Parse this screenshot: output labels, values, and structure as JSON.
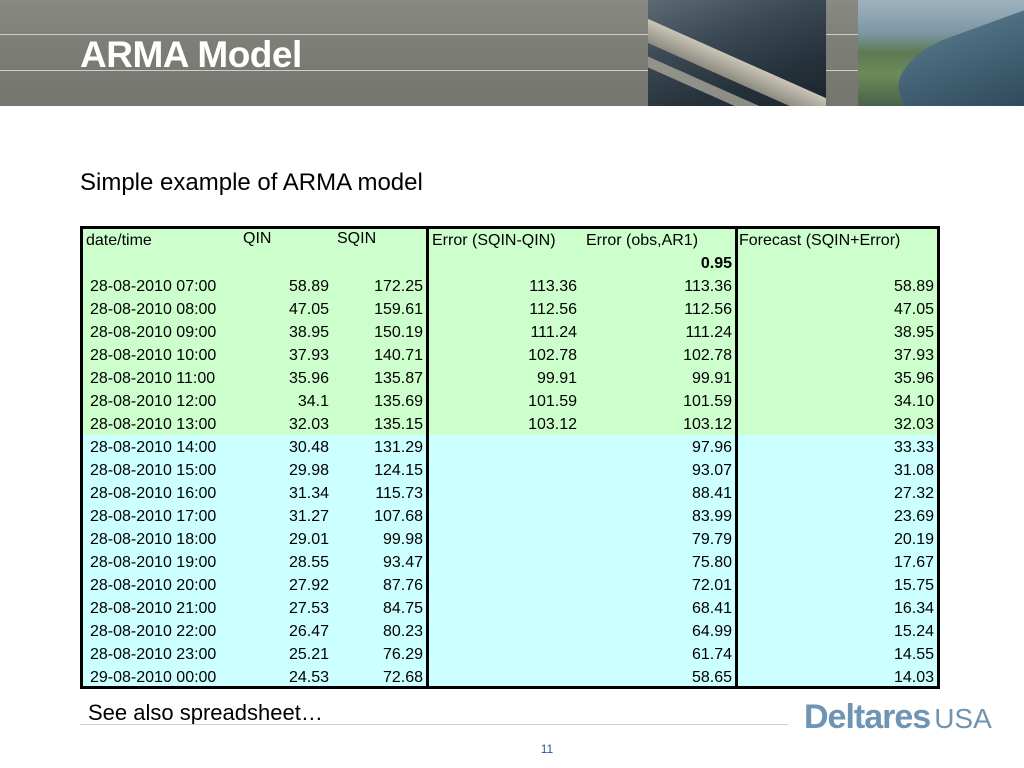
{
  "slide": {
    "title": "ARMA Model",
    "subtitle": "Simple example of ARMA model",
    "note": "See also spreadsheet…",
    "page_number": "11",
    "logo_main": "Deltares",
    "logo_suffix": "USA"
  },
  "colors": {
    "header_gray": "#7d7e78",
    "observed_band": "#ccffcc",
    "forecast_band": "#ccffff",
    "logo_blue": "#6f94b4",
    "page_number_blue": "#2a55a8"
  },
  "table": {
    "headers": {
      "datetime": "date/time",
      "qin": "QIN",
      "sqin": "SQIN",
      "error_sqin_qin": "Error (SQIN-QIN)",
      "error_obs_ar1": "Error (obs,AR1)",
      "forecast": "Forecast (SQIN+Error)"
    },
    "ar1_coefficient": "0.95",
    "rows": [
      {
        "datetime": "28-08-2010 07:00",
        "qin": "58.89",
        "sqin": "172.25",
        "err": "113.36",
        "err_ar1": "113.36",
        "forecast": "58.89"
      },
      {
        "datetime": "28-08-2010 08:00",
        "qin": "47.05",
        "sqin": "159.61",
        "err": "112.56",
        "err_ar1": "112.56",
        "forecast": "47.05"
      },
      {
        "datetime": "28-08-2010 09:00",
        "qin": "38.95",
        "sqin": "150.19",
        "err": "111.24",
        "err_ar1": "111.24",
        "forecast": "38.95"
      },
      {
        "datetime": "28-08-2010 10:00",
        "qin": "37.93",
        "sqin": "140.71",
        "err": "102.78",
        "err_ar1": "102.78",
        "forecast": "37.93"
      },
      {
        "datetime": "28-08-2010 11:00",
        "qin": "35.96",
        "sqin": "135.87",
        "err": "99.91",
        "err_ar1": "99.91",
        "forecast": "35.96"
      },
      {
        "datetime": "28-08-2010 12:00",
        "qin": "34.1",
        "sqin": "135.69",
        "err": "101.59",
        "err_ar1": "101.59",
        "forecast": "34.10"
      },
      {
        "datetime": "28-08-2010 13:00",
        "qin": "32.03",
        "sqin": "135.15",
        "err": "103.12",
        "err_ar1": "103.12",
        "forecast": "32.03"
      },
      {
        "datetime": "28-08-2010 14:00",
        "qin": "30.48",
        "sqin": "131.29",
        "err": "",
        "err_ar1": "97.96",
        "forecast": "33.33"
      },
      {
        "datetime": "28-08-2010 15:00",
        "qin": "29.98",
        "sqin": "124.15",
        "err": "",
        "err_ar1": "93.07",
        "forecast": "31.08"
      },
      {
        "datetime": "28-08-2010 16:00",
        "qin": "31.34",
        "sqin": "115.73",
        "err": "",
        "err_ar1": "88.41",
        "forecast": "27.32"
      },
      {
        "datetime": "28-08-2010 17:00",
        "qin": "31.27",
        "sqin": "107.68",
        "err": "",
        "err_ar1": "83.99",
        "forecast": "23.69"
      },
      {
        "datetime": "28-08-2010 18:00",
        "qin": "29.01",
        "sqin": "99.98",
        "err": "",
        "err_ar1": "79.79",
        "forecast": "20.19"
      },
      {
        "datetime": "28-08-2010 19:00",
        "qin": "28.55",
        "sqin": "93.47",
        "err": "",
        "err_ar1": "75.80",
        "forecast": "17.67"
      },
      {
        "datetime": "28-08-2010 20:00",
        "qin": "27.92",
        "sqin": "87.76",
        "err": "",
        "err_ar1": "72.01",
        "forecast": "15.75"
      },
      {
        "datetime": "28-08-2010 21:00",
        "qin": "27.53",
        "sqin": "84.75",
        "err": "",
        "err_ar1": "68.41",
        "forecast": "16.34"
      },
      {
        "datetime": "28-08-2010 22:00",
        "qin": "26.47",
        "sqin": "80.23",
        "err": "",
        "err_ar1": "64.99",
        "forecast": "15.24"
      },
      {
        "datetime": "28-08-2010 23:00",
        "qin": "25.21",
        "sqin": "76.29",
        "err": "",
        "err_ar1": "61.74",
        "forecast": "14.55"
      },
      {
        "datetime": "29-08-2010 00:00",
        "qin": "24.53",
        "sqin": "72.68",
        "err": "",
        "err_ar1": "58.65",
        "forecast": "14.03"
      }
    ]
  }
}
